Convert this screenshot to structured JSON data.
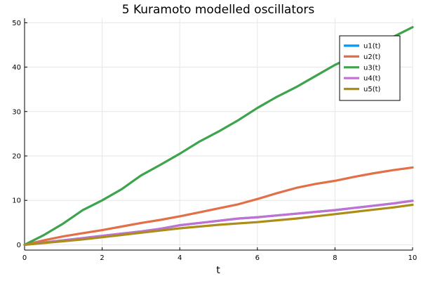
{
  "chart_data": {
    "type": "line",
    "title": "5 Kuramoto modelled oscillators",
    "xlabel": "t",
    "ylabel": "",
    "xlim": [
      0,
      10
    ],
    "ylim": [
      -1.2,
      51
    ],
    "xticks": [
      0,
      2,
      4,
      6,
      8,
      10
    ],
    "yticks": [
      0,
      10,
      20,
      30,
      40,
      50
    ],
    "grid": true,
    "legend_position": "top-right",
    "x": [
      0,
      0.5,
      1,
      1.5,
      2,
      2.5,
      3,
      3.5,
      4,
      4.5,
      5,
      5.5,
      6,
      6.5,
      7,
      7.5,
      8,
      8.5,
      9,
      9.5,
      10
    ],
    "series": [
      {
        "name": "u1(t)",
        "color": "#009AFA",
        "values": [
          0,
          0.5,
          1.0,
          1.5,
          2.0,
          2.5,
          3.0,
          3.6,
          4.4,
          4.9,
          5.4,
          5.9,
          6.2,
          6.6,
          7.0,
          7.4,
          7.8,
          8.3,
          8.8,
          9.3,
          9.9
        ]
      },
      {
        "name": "u2(t)",
        "color": "#E26F46",
        "values": [
          0,
          1.0,
          1.9,
          2.6,
          3.3,
          4.1,
          4.9,
          5.6,
          6.4,
          7.3,
          8.2,
          9.1,
          10.3,
          11.6,
          12.8,
          13.7,
          14.4,
          15.3,
          16.1,
          16.8,
          17.4
        ]
      },
      {
        "name": "u3(t)",
        "color": "#3DA44D",
        "values": [
          0,
          2.2,
          4.8,
          7.8,
          10.0,
          12.5,
          15.6,
          18.0,
          20.5,
          23.2,
          25.5,
          28.0,
          30.8,
          33.3,
          35.5,
          38.0,
          40.5,
          42.5,
          44.5,
          46.8,
          49.0
        ]
      },
      {
        "name": "u4(t)",
        "color": "#C271D2",
        "values": [
          0,
          0.5,
          1.0,
          1.5,
          2.0,
          2.5,
          3.0,
          3.6,
          4.4,
          4.9,
          5.4,
          5.9,
          6.2,
          6.6,
          7.0,
          7.4,
          7.8,
          8.3,
          8.8,
          9.3,
          9.9
        ]
      },
      {
        "name": "u5(t)",
        "color": "#AC8D18",
        "values": [
          0,
          0.4,
          0.8,
          1.2,
          1.7,
          2.2,
          2.7,
          3.2,
          3.7,
          4.1,
          4.5,
          4.8,
          5.1,
          5.5,
          5.9,
          6.4,
          6.9,
          7.4,
          7.9,
          8.4,
          9.0
        ]
      }
    ]
  }
}
